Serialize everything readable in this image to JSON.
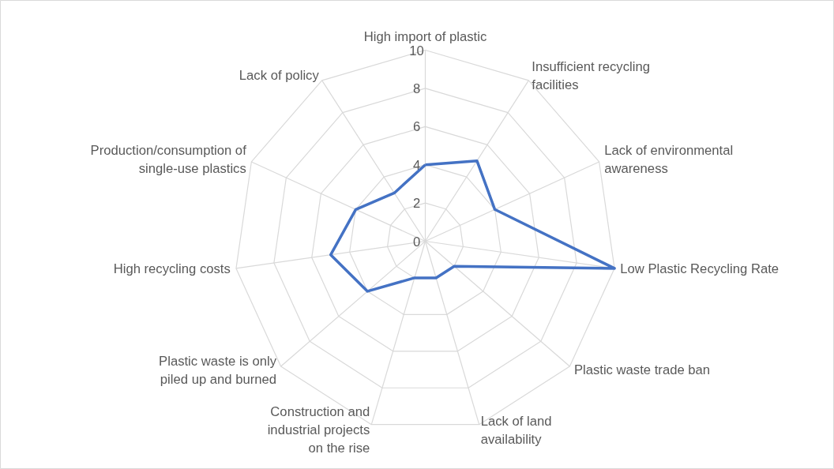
{
  "chart_data": {
    "type": "radar",
    "categories": [
      "High import of plastic",
      "Insufficient recycling facilities",
      "Lack of environmental awareness",
      "Low Plastic Recycling Rate",
      "Plastic waste trade ban",
      "Lack of land availability",
      "Construction and industrial projects on the rise",
      "Plastic waste is only piled up and burned",
      "High recycling costs",
      "Production/consumption of single-use plastics",
      "Lack of policy"
    ],
    "series": [
      {
        "color": "#4472c4",
        "values": [
          4,
          5,
          4,
          10,
          2,
          2,
          2,
          4,
          5,
          4,
          3
        ]
      }
    ],
    "ylim": [
      0,
      10
    ],
    "yticks": [
      {
        "value": 0,
        "label": "0"
      },
      {
        "value": 2,
        "label": "2"
      },
      {
        "value": 4,
        "label": "4"
      },
      {
        "value": 6,
        "label": "6"
      },
      {
        "value": 8,
        "label": "8"
      },
      {
        "value": 10,
        "label": "10"
      }
    ],
    "grid": true
  }
}
